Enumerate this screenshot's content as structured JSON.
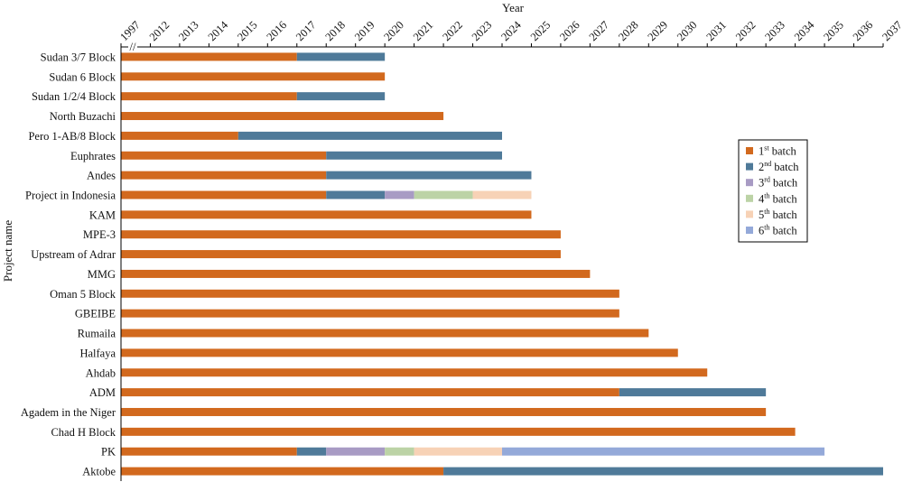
{
  "chart_data": {
    "type": "bar",
    "orientation": "horizontal-stacked",
    "xlabel": "Year",
    "ylabel": "Project name",
    "x_ticks": [
      "1997",
      "2012",
      "2013",
      "2014",
      "2015",
      "2016",
      "2017",
      "2018",
      "2019",
      "2020",
      "2021",
      "2022",
      "2023",
      "2024",
      "2025",
      "2026",
      "2027",
      "2028",
      "2029",
      "2030",
      "2031",
      "2032",
      "2033",
      "2034",
      "2035",
      "2036",
      "2037"
    ],
    "x_axis_break": "//",
    "xlim": [
      "2011",
      "2037"
    ],
    "legend_position": "right",
    "series": [
      {
        "name": "1st batch",
        "base": "1",
        "sup": "st",
        "suffix": " batch",
        "color": "#d2691e"
      },
      {
        "name": "2nd batch",
        "base": "2",
        "sup": "nd",
        "suffix": " batch",
        "color": "#4f7a99"
      },
      {
        "name": "3rd batch",
        "base": "3",
        "sup": "rd",
        "suffix": " batch",
        "color": "#a89bc4"
      },
      {
        "name": "4th batch",
        "base": "4",
        "sup": "th",
        "suffix": " batch",
        "color": "#bcd3a6"
      },
      {
        "name": "5th batch",
        "base": "5",
        "sup": "th",
        "suffix": " batch",
        "color": "#f7d2b6"
      },
      {
        "name": "6th batch",
        "base": "6",
        "sup": "th",
        "suffix": " batch",
        "color": "#94a9d9"
      }
    ],
    "projects": [
      {
        "name": "Sudan 3/7 Block",
        "segments": [
          [
            "2011",
            "2017"
          ],
          [
            "2017",
            "2020"
          ]
        ]
      },
      {
        "name": "Sudan 6 Block",
        "segments": [
          [
            "2011",
            "2020"
          ]
        ]
      },
      {
        "name": "Sudan 1/2/4 Block",
        "segments": [
          [
            "2011",
            "2017"
          ],
          [
            "2017",
            "2020"
          ]
        ]
      },
      {
        "name": "North Buzachi",
        "segments": [
          [
            "2011",
            "2022"
          ]
        ]
      },
      {
        "name": "Pero 1-AB/8 Block",
        "segments": [
          [
            "2011",
            "2015"
          ],
          [
            "2015",
            "2024"
          ]
        ]
      },
      {
        "name": "Euphrates",
        "segments": [
          [
            "2011",
            "2018"
          ],
          [
            "2018",
            "2024"
          ]
        ]
      },
      {
        "name": "Andes",
        "segments": [
          [
            "2011",
            "2018"
          ],
          [
            "2018",
            "2025"
          ]
        ]
      },
      {
        "name": "Project in Indonesia",
        "segments": [
          [
            "2011",
            "2018"
          ],
          [
            "2018",
            "2020"
          ],
          [
            "2020",
            "2021"
          ],
          [
            "2021",
            "2023"
          ],
          [
            "2023",
            "2025"
          ]
        ]
      },
      {
        "name": "KAM",
        "segments": [
          [
            "2011",
            "2025"
          ]
        ]
      },
      {
        "name": "MPE-3",
        "segments": [
          [
            "2011",
            "2026"
          ]
        ]
      },
      {
        "name": "Upstream of Adrar",
        "segments": [
          [
            "2011",
            "2026"
          ]
        ]
      },
      {
        "name": "MMG",
        "segments": [
          [
            "2011",
            "2027"
          ]
        ]
      },
      {
        "name": "Oman 5 Block",
        "segments": [
          [
            "2011",
            "2028"
          ]
        ]
      },
      {
        "name": "GBEIBE",
        "segments": [
          [
            "2011",
            "2028"
          ]
        ]
      },
      {
        "name": "Rumaila",
        "segments": [
          [
            "2011",
            "2029"
          ]
        ]
      },
      {
        "name": "Halfaya",
        "segments": [
          [
            "2011",
            "2030"
          ]
        ]
      },
      {
        "name": "Ahdab",
        "segments": [
          [
            "2011",
            "2031"
          ]
        ]
      },
      {
        "name": "ADM",
        "segments": [
          [
            "2011",
            "2028"
          ],
          [
            "2028",
            "2033"
          ]
        ]
      },
      {
        "name": "Agadem in the Niger",
        "segments": [
          [
            "2011",
            "2033"
          ]
        ]
      },
      {
        "name": "Chad H Block",
        "segments": [
          [
            "2011",
            "2034"
          ]
        ]
      },
      {
        "name": "PK",
        "segments": [
          [
            "2011",
            "2017"
          ],
          [
            "2017",
            "2018"
          ],
          [
            "2018",
            "2020"
          ],
          [
            "2020",
            "2021"
          ],
          [
            "2021",
            "2024"
          ],
          [
            "2024",
            "2035"
          ]
        ]
      },
      {
        "name": "Aktobe",
        "segments": [
          [
            "2011",
            "2022"
          ],
          [
            "2022",
            "2037"
          ]
        ]
      }
    ]
  }
}
